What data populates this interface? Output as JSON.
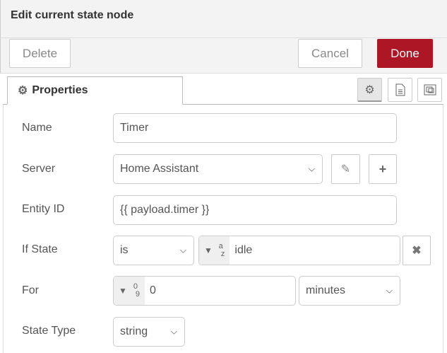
{
  "header": {
    "title": "Edit current state node"
  },
  "toolbar": {
    "delete_label": "Delete",
    "cancel_label": "Cancel",
    "done_label": "Done",
    "done_color": "#ad1625"
  },
  "tabs": {
    "properties_label": "Properties",
    "icons": [
      "gear-icon",
      "document-icon",
      "frame-icon"
    ]
  },
  "form": {
    "name": {
      "label": "Name",
      "value": "Timer"
    },
    "server": {
      "label": "Server",
      "value": "Home Assistant"
    },
    "entity_id": {
      "label": "Entity ID",
      "value": "{{ payload.timer }}"
    },
    "if_state": {
      "label": "If State",
      "operator": "is",
      "type_top": "a",
      "type_bottom": "z",
      "value": "idle"
    },
    "for": {
      "label": "For",
      "type_top": "0",
      "type_bottom": "9",
      "value": "0",
      "unit": "minutes"
    },
    "state_type": {
      "label": "State Type",
      "value": "string"
    }
  }
}
